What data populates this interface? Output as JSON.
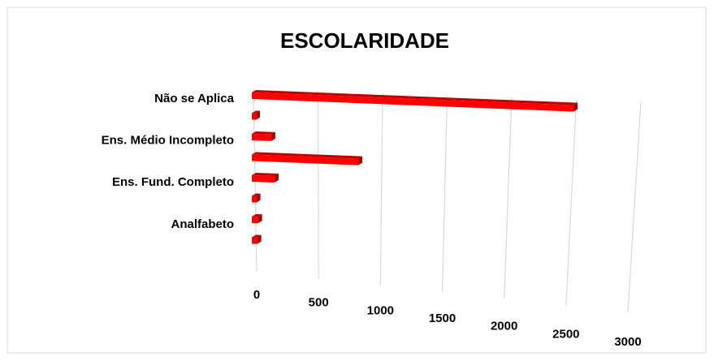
{
  "chart_data": {
    "type": "bar",
    "orientation": "horizontal",
    "title": "ESCOLARIDADE",
    "categories": [
      "Não se Aplica",
      null,
      "Ens. Médio Incompleto",
      null,
      "Ens. Fund. Completo",
      null,
      "Analfabeto",
      null
    ],
    "values": [
      2600,
      30,
      150,
      850,
      170,
      20,
      30,
      20
    ],
    "color": "#ff0000",
    "xlim": [
      0,
      3000
    ],
    "xticks": [
      0,
      500,
      1000,
      1500,
      2000,
      2500,
      3000
    ],
    "grid": true
  }
}
